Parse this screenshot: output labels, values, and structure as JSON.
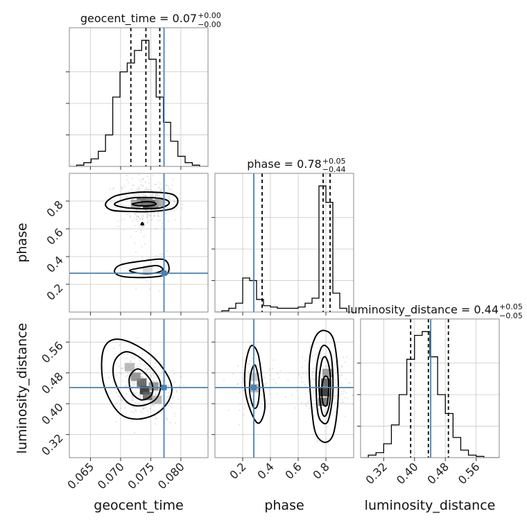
{
  "chart_data": {
    "type": "corner",
    "parameters": [
      {
        "name": "geocent_time",
        "label": "geocent_time",
        "range": [
          0.0615,
          0.0845
        ],
        "ticks": [
          0.065,
          0.07,
          0.075,
          0.08
        ],
        "tick_labels": [
          "0.065",
          "0.070",
          "0.075",
          "0.080"
        ],
        "truth": 0.0772,
        "quantiles": [
          0.0717,
          0.0742,
          0.0765
        ],
        "title": {
          "main": "geocent_time = 0.07",
          "sup": "+0.00",
          "sub": "−0.00"
        },
        "histogram": {
          "edges": [
            0.0615,
            0.0627,
            0.0639,
            0.0651,
            0.0663,
            0.0675,
            0.0687,
            0.0699,
            0.0711,
            0.0723,
            0.0735,
            0.0747,
            0.0759,
            0.0771,
            0.0783,
            0.0795,
            0.0807,
            0.0819,
            0.0831,
            0.0845
          ],
          "counts": [
            0.0,
            0.01,
            0.03,
            0.06,
            0.12,
            0.25,
            0.55,
            0.75,
            0.82,
            0.92,
            1.0,
            0.85,
            0.55,
            0.35,
            0.2,
            0.08,
            0.03,
            0.01,
            0.0
          ]
        }
      },
      {
        "name": "phase",
        "label": "phase",
        "range": [
          0.0,
          1.0
        ],
        "ticks": [
          0.2,
          0.4,
          0.6,
          0.8
        ],
        "tick_labels": [
          "0.2",
          "0.4",
          "0.6",
          "0.8"
        ],
        "truth": 0.28,
        "quantiles": [
          0.34,
          0.78,
          0.83
        ],
        "title": {
          "main": "phase = 0.78",
          "sup": "+0.05",
          "sub": "−0.44"
        },
        "histogram": {
          "edges": [
            0.0,
            0.05,
            0.1,
            0.15,
            0.2,
            0.25,
            0.3,
            0.35,
            0.4,
            0.45,
            0.5,
            0.55,
            0.6,
            0.65,
            0.7,
            0.75,
            0.8,
            0.85,
            0.9,
            0.95,
            1.0
          ],
          "counts": [
            0.0,
            0.01,
            0.03,
            0.07,
            0.27,
            0.25,
            0.1,
            0.05,
            0.04,
            0.03,
            0.03,
            0.03,
            0.04,
            0.07,
            0.11,
            1.0,
            0.87,
            0.15,
            0.03,
            0.0
          ]
        }
      },
      {
        "name": "luminosity_distance",
        "label": "luminosity_distance",
        "range": [
          0.26,
          0.62
        ],
        "ticks": [
          0.32,
          0.4,
          0.48,
          0.56
        ],
        "tick_labels": [
          "0.32",
          "0.40",
          "0.48",
          "0.56"
        ],
        "truth": 0.442,
        "quantiles": [
          0.39,
          0.436,
          0.488
        ],
        "title": {
          "main": "luminosity_distance = 0.44",
          "sup": "+0.05",
          "sub": "−0.05"
        },
        "histogram": {
          "edges": [
            0.26,
            0.28,
            0.3,
            0.32,
            0.34,
            0.36,
            0.38,
            0.4,
            0.42,
            0.44,
            0.46,
            0.48,
            0.5,
            0.52,
            0.54,
            0.56,
            0.58,
            0.6,
            0.62
          ],
          "counts": [
            0.0,
            0.02,
            0.04,
            0.11,
            0.26,
            0.5,
            0.78,
            0.97,
            1.0,
            0.8,
            0.5,
            0.35,
            0.16,
            0.06,
            0.02,
            0.01,
            0.0,
            0.0
          ]
        }
      }
    ],
    "pairs": [
      {
        "x": "geocent_time",
        "y": "phase",
        "truth": [
          0.0772,
          0.28
        ],
        "contours": [
          [
            [
              0.0675,
              0.78
            ],
            [
              0.069,
              0.835
            ],
            [
              0.072,
              0.86
            ],
            [
              0.075,
              0.865
            ],
            [
              0.0785,
              0.85
            ],
            [
              0.0795,
              0.8
            ],
            [
              0.0785,
              0.745
            ],
            [
              0.075,
              0.725
            ],
            [
              0.0715,
              0.725
            ],
            [
              0.0685,
              0.735
            ]
          ],
          [
            [
              0.069,
              0.78
            ],
            [
              0.0715,
              0.82
            ],
            [
              0.075,
              0.825
            ],
            [
              0.0775,
              0.81
            ],
            [
              0.078,
              0.78
            ],
            [
              0.0765,
              0.75
            ],
            [
              0.0735,
              0.745
            ],
            [
              0.0705,
              0.755
            ]
          ],
          [
            [
              0.072,
              0.78
            ],
            [
              0.074,
              0.795
            ],
            [
              0.0755,
              0.79
            ],
            [
              0.0758,
              0.775
            ],
            [
              0.0742,
              0.765
            ],
            [
              0.0725,
              0.77
            ]
          ],
          [
            [
              0.069,
              0.29
            ],
            [
              0.07,
              0.34
            ],
            [
              0.074,
              0.37
            ],
            [
              0.077,
              0.38
            ],
            [
              0.078,
              0.33
            ],
            [
              0.0775,
              0.27
            ],
            [
              0.0745,
              0.25
            ],
            [
              0.0705,
              0.255
            ]
          ],
          [
            [
              0.0715,
              0.3
            ],
            [
              0.0735,
              0.32
            ],
            [
              0.076,
              0.335
            ],
            [
              0.077,
              0.305
            ],
            [
              0.0755,
              0.28
            ],
            [
              0.073,
              0.28
            ]
          ],
          [
            [
              0.0734,
              0.63
            ],
            [
              0.0736,
              0.645
            ],
            [
              0.0738,
              0.63
            ]
          ]
        ],
        "density_peaks": [
          {
            "x": 0.0745,
            "y": 0.78,
            "level": 1.0
          },
          {
            "x": 0.0735,
            "y": 0.79,
            "level": 0.7
          },
          {
            "x": 0.0755,
            "y": 0.78,
            "level": 0.7
          },
          {
            "x": 0.0745,
            "y": 0.8,
            "level": 0.55
          },
          {
            "x": 0.0725,
            "y": 0.78,
            "level": 0.4
          },
          {
            "x": 0.0765,
            "y": 0.79,
            "level": 0.35
          },
          {
            "x": 0.0745,
            "y": 0.3,
            "level": 0.12
          }
        ]
      },
      {
        "x": "geocent_time",
        "y": "luminosity_distance",
        "truth": [
          0.0772,
          0.442
        ],
        "contours": [
          [
            [
              0.067,
              0.53
            ],
            [
              0.0685,
              0.565
            ],
            [
              0.0715,
              0.56
            ],
            [
              0.0755,
              0.52
            ],
            [
              0.0782,
              0.46
            ],
            [
              0.0782,
              0.415
            ],
            [
              0.076,
              0.375
            ],
            [
              0.0725,
              0.36
            ],
            [
              0.0695,
              0.38
            ],
            [
              0.0672,
              0.45
            ]
          ],
          [
            [
              0.069,
              0.51
            ],
            [
              0.071,
              0.535
            ],
            [
              0.074,
              0.51
            ],
            [
              0.0765,
              0.46
            ],
            [
              0.076,
              0.415
            ],
            [
              0.0735,
              0.395
            ],
            [
              0.071,
              0.405
            ],
            [
              0.069,
              0.46
            ]
          ],
          [
            [
              0.0715,
              0.47
            ],
            [
              0.073,
              0.49
            ],
            [
              0.075,
              0.46
            ],
            [
              0.0752,
              0.425
            ],
            [
              0.0735,
              0.41
            ],
            [
              0.0718,
              0.43
            ]
          ]
        ],
        "density_peaks": [
          {
            "x": 0.074,
            "y": 0.435,
            "level": 1.0
          },
          {
            "x": 0.0735,
            "y": 0.455,
            "level": 0.75
          },
          {
            "x": 0.0745,
            "y": 0.42,
            "level": 0.7
          },
          {
            "x": 0.0725,
            "y": 0.47,
            "level": 0.5
          },
          {
            "x": 0.0755,
            "y": 0.445,
            "level": 0.5
          },
          {
            "x": 0.0715,
            "y": 0.495,
            "level": 0.3
          },
          {
            "x": 0.076,
            "y": 0.41,
            "level": 0.3
          }
        ]
      },
      {
        "x": "phase",
        "y": "luminosity_distance",
        "truth": [
          0.28,
          0.442
        ],
        "contours": [
          [
            [
              0.22,
              0.5
            ],
            [
              0.26,
              0.55
            ],
            [
              0.31,
              0.53
            ],
            [
              0.34,
              0.46
            ],
            [
              0.36,
              0.39
            ],
            [
              0.32,
              0.35
            ],
            [
              0.27,
              0.37
            ],
            [
              0.22,
              0.43
            ]
          ],
          [
            [
              0.26,
              0.48
            ],
            [
              0.29,
              0.5
            ],
            [
              0.32,
              0.45
            ],
            [
              0.31,
              0.4
            ],
            [
              0.28,
              0.39
            ],
            [
              0.25,
              0.43
            ]
          ],
          [
            [
              0.68,
              0.5
            ],
            [
              0.72,
              0.57
            ],
            [
              0.79,
              0.59
            ],
            [
              0.86,
              0.56
            ],
            [
              0.89,
              0.44
            ],
            [
              0.86,
              0.33
            ],
            [
              0.8,
              0.3
            ],
            [
              0.73,
              0.32
            ],
            [
              0.7,
              0.38
            ]
          ],
          [
            [
              0.73,
              0.48
            ],
            [
              0.76,
              0.54
            ],
            [
              0.8,
              0.55
            ],
            [
              0.84,
              0.52
            ],
            [
              0.85,
              0.43
            ],
            [
              0.82,
              0.36
            ],
            [
              0.78,
              0.35
            ],
            [
              0.74,
              0.38
            ]
          ],
          [
            [
              0.75,
              0.45
            ],
            [
              0.77,
              0.51
            ],
            [
              0.8,
              0.52
            ],
            [
              0.83,
              0.48
            ],
            [
              0.83,
              0.41
            ],
            [
              0.8,
              0.37
            ],
            [
              0.77,
              0.38
            ]
          ],
          [
            [
              0.77,
              0.44
            ],
            [
              0.79,
              0.47
            ],
            [
              0.82,
              0.46
            ],
            [
              0.81,
              0.4
            ],
            [
              0.78,
              0.4
            ]
          ]
        ],
        "density_peaks": [
          {
            "x": 0.79,
            "y": 0.43,
            "level": 1.0
          },
          {
            "x": 0.8,
            "y": 0.455,
            "level": 0.75
          },
          {
            "x": 0.78,
            "y": 0.405,
            "level": 0.65
          },
          {
            "x": 0.81,
            "y": 0.48,
            "level": 0.45
          },
          {
            "x": 0.29,
            "y": 0.44,
            "level": 0.3
          },
          {
            "x": 0.28,
            "y": 0.47,
            "level": 0.2
          }
        ]
      }
    ]
  }
}
